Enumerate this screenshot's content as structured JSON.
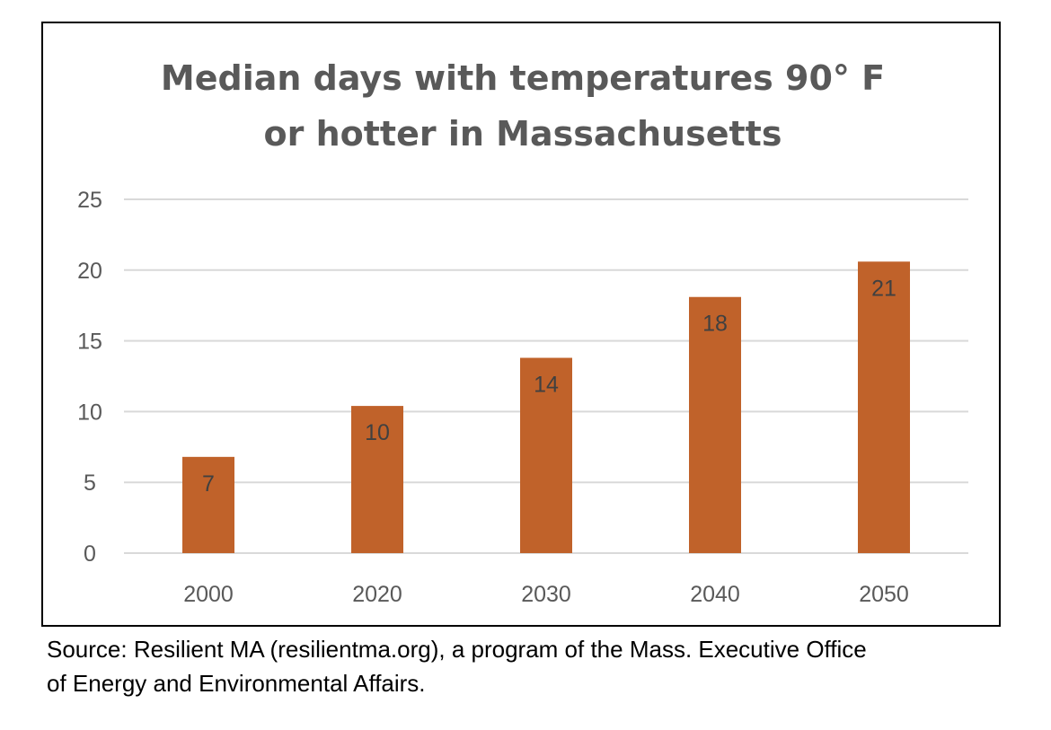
{
  "chart_data": {
    "type": "bar",
    "title_lines": [
      "Median days with temperatures 90° F",
      "or hotter in Massachusetts"
    ],
    "categories": [
      "2000",
      "2020",
      "2030",
      "2040",
      "2050"
    ],
    "values": [
      7,
      10,
      14,
      18,
      21
    ],
    "data_labels": [
      "7",
      "10",
      "14",
      "18",
      "21"
    ],
    "bar_heights": [
      6.8,
      10.4,
      13.8,
      18.1,
      20.6
    ],
    "y_ticks": [
      "0",
      "5",
      "10",
      "15",
      "20",
      "25"
    ],
    "ylim": [
      0,
      25
    ],
    "xlabel": "",
    "ylabel": "",
    "grid": true,
    "legend": "none",
    "bar_color": "#C0622A",
    "grid_color": "#D9D9D9"
  },
  "source_note": {
    "line1": "Source: Resilient MA (resilientma.org), a program of the Mass. Executive Office",
    "line2": "of Energy and Environmental Affairs."
  }
}
